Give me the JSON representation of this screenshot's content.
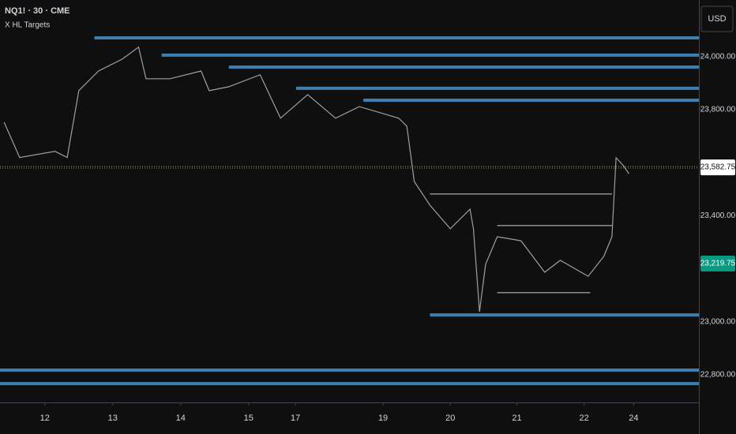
{
  "chart_data": {
    "type": "line",
    "title": "NQ1! · 30 · CME",
    "subtitle": "X HL Targets",
    "currency": "USD",
    "x": [
      -0.6,
      -0.37,
      0.15,
      0.33,
      0.5,
      0.79,
      1.14,
      1.38,
      1.49,
      1.84,
      2.3,
      2.42,
      2.71,
      3.17,
      3.47,
      3.87,
      4.28,
      4.63,
      5.21,
      5.33,
      5.44,
      5.67,
      5.97,
      6.26,
      6.31,
      6.4,
      6.49,
      6.66,
      7.01,
      7.36,
      7.59,
      8.0,
      8.23,
      8.35,
      8.41,
      8.52,
      8.6
    ],
    "series": [
      {
        "name": "NQ1!",
        "color": "#9aa0a6",
        "values": [
          23753,
          23620,
          23643,
          23620,
          23872,
          23946,
          23991,
          24036,
          23917,
          23917,
          23946,
          23872,
          23887,
          23932,
          23768,
          23857,
          23768,
          23812,
          23768,
          23738,
          23529,
          23440,
          23351,
          23425,
          23351,
          23038,
          23217,
          23321,
          23306,
          23187,
          23232,
          23172,
          23247,
          23321,
          23619,
          23589,
          23559
        ]
      }
    ],
    "levels": [
      {
        "value": 24071,
        "start": 0.73
      },
      {
        "value": 24006,
        "start": 1.72
      },
      {
        "value": 23961,
        "start": 2.71
      },
      {
        "value": 23881,
        "start": 3.7
      },
      {
        "value": 23836,
        "start": 4.69
      },
      {
        "value": 23026,
        "start": 5.67
      },
      {
        "value": 22818,
        "start": -0.66
      },
      {
        "value": 22767,
        "start": -0.66
      }
    ],
    "level_color": "#3d7fb0",
    "ranges": [
      {
        "value": 23482,
        "start": 5.67,
        "end": 8.35
      },
      {
        "value": 23363,
        "start": 6.66,
        "end": 8.35
      },
      {
        "value": 23110,
        "start": 6.66,
        "end": 8.03
      }
    ],
    "range_color": "#d0d0d0",
    "price_tags": [
      {
        "value": 23582.75,
        "label": "23,582.75",
        "color": "#ffffff",
        "text_color": "#111111"
      },
      {
        "value": 23219.75,
        "label": "23,219.75",
        "color": "#089981",
        "text_color": "#ffffff"
      }
    ],
    "xlim": [
      -0.66,
      9.63
    ],
    "ylim": [
      22696,
      24214
    ],
    "xticks": [
      {
        "value": 0,
        "label": "12"
      },
      {
        "value": 1,
        "label": "13"
      },
      {
        "value": 2,
        "label": "14"
      },
      {
        "value": 3,
        "label": "15"
      },
      {
        "value": 3.69,
        "label": "17"
      },
      {
        "value": 4.98,
        "label": "19"
      },
      {
        "value": 5.97,
        "label": "20"
      },
      {
        "value": 6.95,
        "label": "21"
      },
      {
        "value": 7.94,
        "label": "22"
      },
      {
        "value": 8.67,
        "label": "24"
      }
    ],
    "yticks": [
      {
        "value": 24000,
        "label": "24,000.00"
      },
      {
        "value": 23800,
        "label": "23,800.00"
      },
      {
        "value": 23400,
        "label": "23,400.00"
      },
      {
        "value": 23000,
        "label": "23,000.00"
      },
      {
        "value": 22800,
        "label": "22,800.00"
      }
    ]
  }
}
